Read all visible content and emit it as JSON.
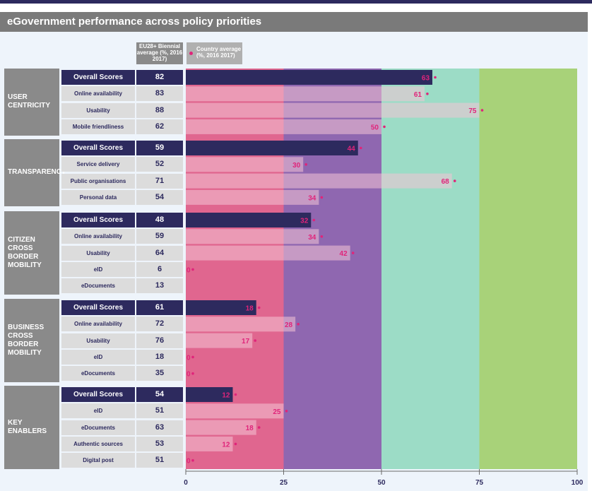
{
  "title": "eGovernment performance across policy priorities",
  "legend": {
    "eu_label": "EU28+ Biennial average (%, 2016 2017)",
    "country_label": "Country average (%, 2016 2017)"
  },
  "colors": {
    "band_0_25": "#e0668f",
    "band_25_50": "#8f67b0",
    "band_50_75": "#9cdcc6",
    "band_75_100": "#a8d279",
    "bar_overall": "#2d2a5e",
    "bar_sub": "#f4c4d6",
    "value_text": "#e0247a"
  },
  "chart_data": {
    "type": "bar",
    "orientation": "horizontal",
    "xlim": [
      0,
      100
    ],
    "xticks": [
      "0",
      "25",
      "50",
      "75",
      "100"
    ],
    "background_bands": [
      [
        0,
        25
      ],
      [
        25,
        50
      ],
      [
        50,
        75
      ],
      [
        75,
        100
      ]
    ],
    "groups": [
      {
        "name": "USER CENTRICITY",
        "rows": [
          {
            "label": "Overall Scores",
            "eu": "82",
            "value": 63,
            "overall": true
          },
          {
            "label": "Online availability",
            "eu": "83",
            "value": 61,
            "overall": false
          },
          {
            "label": "Usability",
            "eu": "88",
            "value": 75,
            "overall": false
          },
          {
            "label": "Mobile friendliness",
            "eu": "62",
            "value": 50,
            "overall": false
          }
        ]
      },
      {
        "name": "TRANSPARENCY",
        "rows": [
          {
            "label": "Overall Scores",
            "eu": "59",
            "value": 44,
            "overall": true
          },
          {
            "label": "Service delivery",
            "eu": "52",
            "value": 30,
            "overall": false
          },
          {
            "label": "Public organisations",
            "eu": "71",
            "value": 68,
            "overall": false
          },
          {
            "label": "Personal data",
            "eu": "54",
            "value": 34,
            "overall": false
          }
        ]
      },
      {
        "name": "CITIZEN\nCROSS\nBORDER\nMOBILITY",
        "rows": [
          {
            "label": "Overall Scores",
            "eu": "48",
            "value": 32,
            "overall": true
          },
          {
            "label": "Online availability",
            "eu": "59",
            "value": 34,
            "overall": false
          },
          {
            "label": "Usability",
            "eu": "64",
            "value": 42,
            "overall": false
          },
          {
            "label": "eID",
            "eu": "6",
            "value": 0,
            "overall": false
          },
          {
            "label": "eDocuments",
            "eu": "13",
            "value": null,
            "overall": false
          }
        ]
      },
      {
        "name": "BUSINESS\nCROSS\nBORDER\nMOBILITY",
        "rows": [
          {
            "label": "Overall Scores",
            "eu": "61",
            "value": 18,
            "overall": true
          },
          {
            "label": "Online availability",
            "eu": "72",
            "value": 28,
            "overall": false
          },
          {
            "label": "Usability",
            "eu": "76",
            "value": 17,
            "overall": false
          },
          {
            "label": "eID",
            "eu": "18",
            "value": 0,
            "overall": false
          },
          {
            "label": "eDocuments",
            "eu": "35",
            "value": 0,
            "overall": false
          }
        ]
      },
      {
        "name": "KEY ENABLERS",
        "rows": [
          {
            "label": "Overall Scores",
            "eu": "54",
            "value": 12,
            "overall": true
          },
          {
            "label": "eID",
            "eu": "51",
            "value": 25,
            "overall": false
          },
          {
            "label": "eDocuments",
            "eu": "63",
            "value": 18,
            "overall": false
          },
          {
            "label": "Authentic sources",
            "eu": "53",
            "value": 12,
            "overall": false
          },
          {
            "label": "Digital post",
            "eu": "51",
            "value": 0,
            "overall": false
          }
        ]
      }
    ]
  }
}
